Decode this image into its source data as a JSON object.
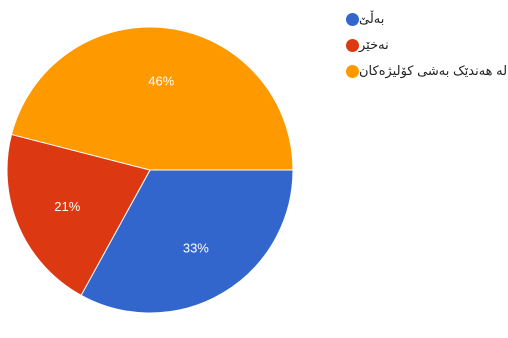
{
  "chart_data": {
    "type": "pie",
    "slices": [
      {
        "name": "بەڵێ",
        "value": 33,
        "label": "33%",
        "color": "#3366cc"
      },
      {
        "name": "نەخێر",
        "value": 21,
        "label": "21%",
        "color": "#dc3912"
      },
      {
        "name": "لە هەندێک بەشی کۆلیژەکان",
        "value": 46,
        "label": "46%",
        "color": "#ff9900"
      }
    ],
    "start_angle_deg": 90,
    "direction": "clockwise",
    "legend_position": "right",
    "label_color": "#ffffff"
  }
}
